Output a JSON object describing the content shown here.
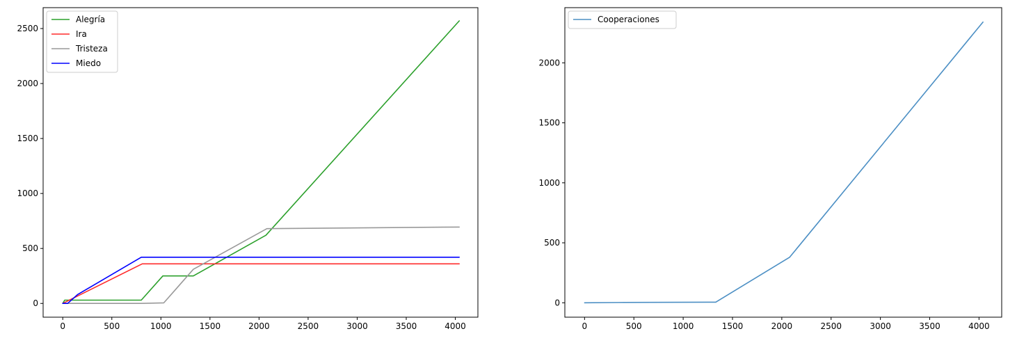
{
  "chart_data": [
    {
      "type": "line",
      "title": "",
      "xlabel": "",
      "ylabel": "",
      "xlim": [
        -200,
        4230
      ],
      "ylim": [
        -125,
        2690
      ],
      "xticks": [
        0,
        500,
        1000,
        1500,
        2000,
        2500,
        3000,
        3500,
        4000
      ],
      "yticks": [
        0,
        500,
        1000,
        1500,
        2000,
        2500
      ],
      "grid": false,
      "legend_position": "top-left",
      "series": [
        {
          "name": "Alegría",
          "color": "#2ca02c",
          "points": [
            [
              0,
              0
            ],
            [
              20,
              30
            ],
            [
              800,
              30
            ],
            [
              1020,
              250
            ],
            [
              1330,
              250
            ],
            [
              2070,
              620
            ],
            [
              4040,
              2570
            ]
          ]
        },
        {
          "name": "Ira",
          "color": "#ff2b2b",
          "points": [
            [
              0,
              0
            ],
            [
              810,
              360
            ],
            [
              4040,
              360
            ]
          ]
        },
        {
          "name": "Tristeza",
          "color": "#999999",
          "points": [
            [
              0,
              0
            ],
            [
              800,
              0
            ],
            [
              1030,
              5
            ],
            [
              1330,
              310
            ],
            [
              2080,
              680
            ],
            [
              4040,
              695
            ]
          ]
        },
        {
          "name": "Miedo",
          "color": "#0000ff",
          "points": [
            [
              0,
              0
            ],
            [
              50,
              0
            ],
            [
              150,
              80
            ],
            [
              800,
              420
            ],
            [
              4040,
              420
            ]
          ]
        }
      ]
    },
    {
      "type": "line",
      "title": "",
      "xlabel": "",
      "ylabel": "",
      "xlim": [
        -200,
        4230
      ],
      "ylim": [
        -120,
        2460
      ],
      "xticks": [
        0,
        500,
        1000,
        1500,
        2000,
        2500,
        3000,
        3500,
        4000
      ],
      "yticks": [
        0,
        500,
        1000,
        1500,
        2000
      ],
      "grid": false,
      "legend_position": "top-left",
      "series": [
        {
          "name": "Cooperaciones",
          "color": "#4c8fc4",
          "points": [
            [
              0,
              0
            ],
            [
              400,
              3
            ],
            [
              1330,
              5
            ],
            [
              2080,
              380
            ],
            [
              4040,
              2340
            ]
          ]
        }
      ]
    }
  ]
}
